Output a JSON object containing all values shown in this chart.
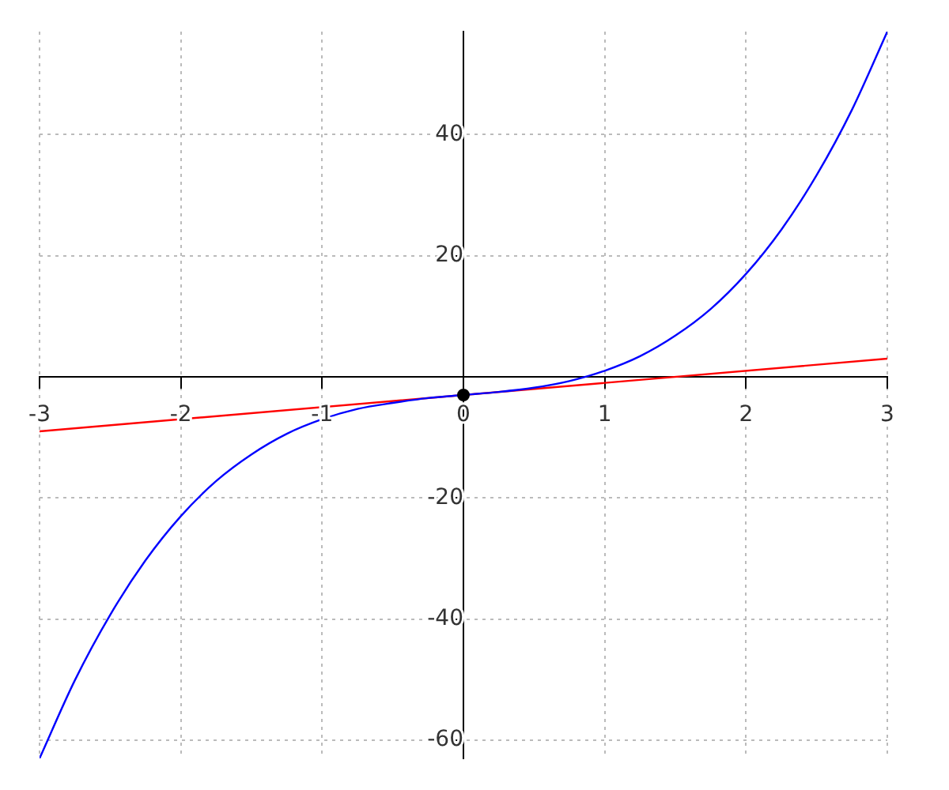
{
  "chart_data": {
    "type": "line",
    "xlim": [
      -3,
      3
    ],
    "ylim": [
      -63,
      57
    ],
    "xticks": [
      -3,
      -2,
      -1,
      0,
      1,
      2,
      3
    ],
    "yticks": [
      -60,
      -40,
      -20,
      20,
      40
    ],
    "grid": true,
    "line_style": "solid",
    "series": [
      {
        "color": "#0000ff",
        "x": [
          -3,
          -2.75,
          -2.5,
          -2.25,
          -2,
          -1.75,
          -1.5,
          -1.25,
          -1,
          -0.75,
          -0.5,
          -0.25,
          0,
          0.25,
          0.5,
          0.75,
          1,
          1.25,
          1.5,
          1.75,
          2,
          2.25,
          2.5,
          2.75,
          3
        ],
        "values": [
          -63,
          -50.1,
          -39.3,
          -30.3,
          -23,
          -17.2,
          -12.8,
          -9.4,
          -7,
          -5.3,
          -4.3,
          -3.5,
          -3,
          -2.5,
          -1.8,
          -0.7,
          1,
          3.4,
          6.8,
          11.2,
          17,
          24.3,
          33.3,
          44.1,
          57
        ]
      },
      {
        "color": "#ff0000",
        "x": [
          -3,
          3
        ],
        "values": [
          -9,
          3
        ]
      },
      {
        "type": "scatter",
        "color": "#000000",
        "marker": "circle",
        "x": [
          0
        ],
        "values": [
          -3
        ]
      }
    ]
  }
}
